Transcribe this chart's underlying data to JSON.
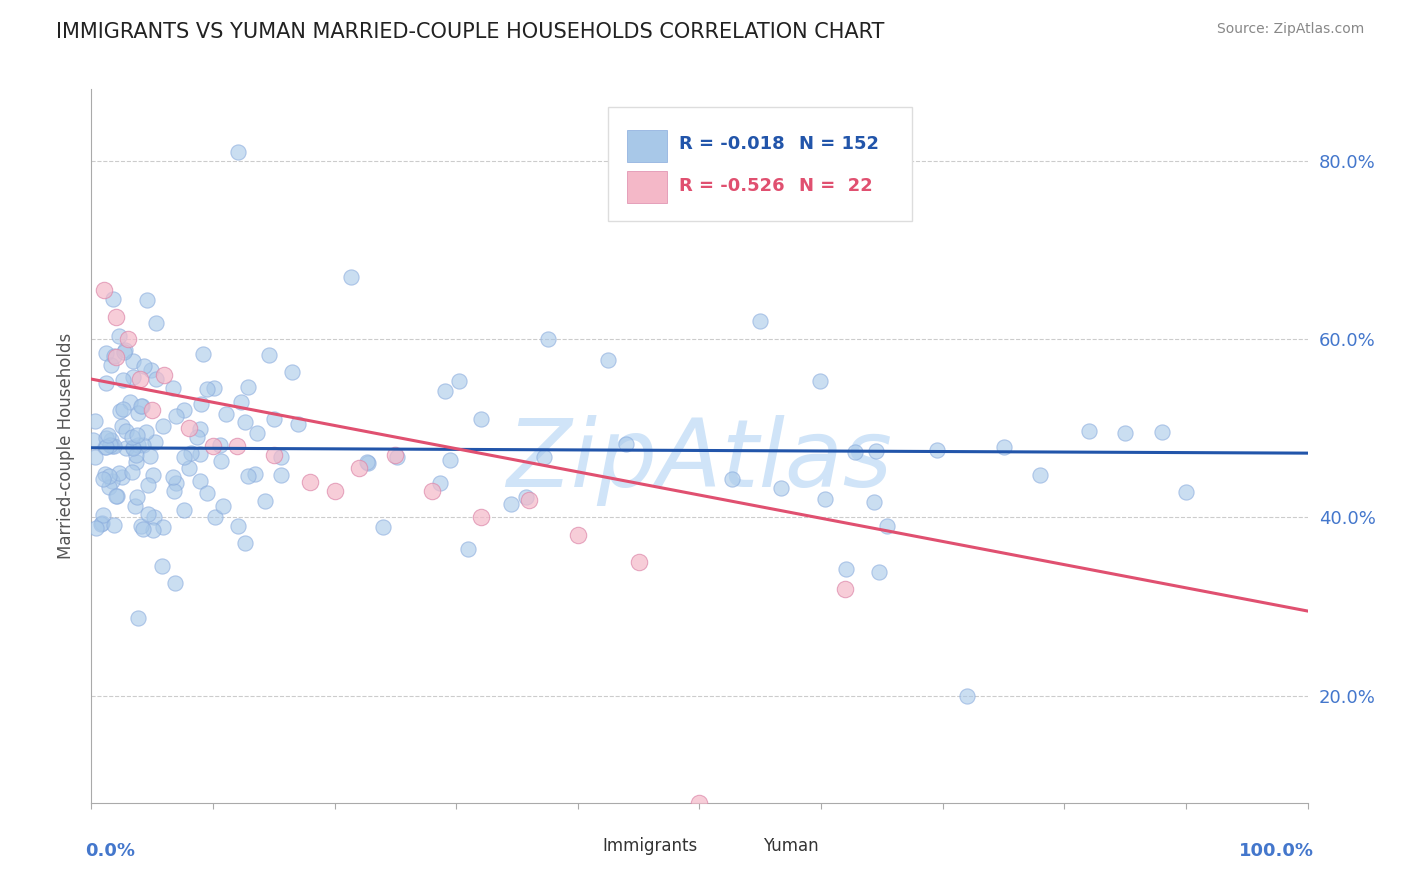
{
  "title": "IMMIGRANTS VS YUMAN MARRIED-COUPLE HOUSEHOLDS CORRELATION CHART",
  "source": "Source: ZipAtlas.com",
  "ylabel": "Married-couple Households",
  "xlim": [
    0.0,
    1.0
  ],
  "ylim": [
    0.08,
    0.88
  ],
  "yticks": [
    0.2,
    0.4,
    0.6,
    0.8
  ],
  "ytick_labels": [
    "20.0%",
    "40.0%",
    "60.0%",
    "80.0%"
  ],
  "r1": -0.018,
  "n1": 152,
  "r2": -0.526,
  "n2": 22,
  "blue_color": "#a8c8e8",
  "pink_color": "#f4b8c8",
  "blue_line_color": "#2255aa",
  "pink_line_color": "#e05070",
  "watermark": "ZipAtlas",
  "watermark_color": "#d0e4f8",
  "axis_color": "#4477cc",
  "grid_color": "#cccccc",
  "background_color": "#ffffff",
  "blue_line_y0": 0.478,
  "blue_line_y1": 0.472,
  "pink_line_y0": 0.555,
  "pink_line_y1": 0.295
}
